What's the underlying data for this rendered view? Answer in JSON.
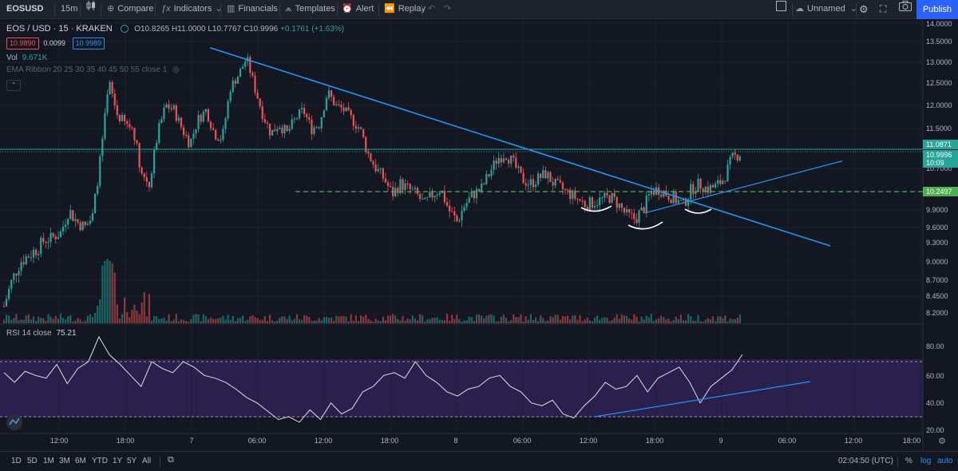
{
  "toolbar": {
    "symbol": "EOSUSD",
    "interval": "15m",
    "compare": "Compare",
    "indicators": "Indicators",
    "financials": "Financials",
    "templates": "Templates",
    "alert": "Alert",
    "replay": "Replay",
    "layout_name": "Unnamed",
    "publish": "Publish"
  },
  "legend": {
    "pair": "EOS / USD · 15 · KRAKEN",
    "open": "O10.8265",
    "high": "H11.0000",
    "low": "L10.7767",
    "close": "C10.9996",
    "change": "+0.1761 (+1.63%)",
    "bid": "10.9890",
    "spread": "0.0099",
    "ask": "10.9989",
    "vol_label": "Vol",
    "vol_value": "9.671K",
    "ema": "EMA Ribbon 20 25 30 35 40 45 50 55 close 1"
  },
  "rsi": {
    "label": "RSI 14 close",
    "value": "75.21"
  },
  "price_axis": [
    "14.0000",
    "13.5000",
    "13.0000",
    "12.5000",
    "12.0000",
    "11.5000",
    "10.7000",
    "9.9000",
    "9.6000",
    "9.3000",
    "9.0000",
    "8.7000",
    "8.4500",
    "8.2000"
  ],
  "price_tags": {
    "last_high": "11.0871",
    "last_price": "10.9996",
    "countdown": "10:09",
    "support": "10.2497"
  },
  "rsi_axis": [
    "80.00",
    "60.00",
    "40.00",
    "20.00"
  ],
  "time_axis": [
    "12:00",
    "18:00",
    "7",
    "06:00",
    "12:00",
    "18:00",
    "8",
    "06:00",
    "12:00",
    "18:00",
    "9",
    "06:00",
    "12:00",
    "18:00"
  ],
  "ranges": [
    "1D",
    "5D",
    "1M",
    "3M",
    "6M",
    "YTD",
    "1Y",
    "5Y",
    "All"
  ],
  "footer": {
    "clock": "02:04:50 (UTC)",
    "percent": "%",
    "log": "log",
    "auto": "auto"
  },
  "colors": {
    "up": "#26a69a",
    "down": "#ef5350",
    "trendline": "#2196f3",
    "support": "#4caf50",
    "accent": "#2962ff",
    "rsi_band": "#7e57c2"
  },
  "chart_data": {
    "type": "candlestick",
    "symbol": "EOS / USD",
    "timeframe": "15",
    "exchange": "KRAKEN",
    "ylim": [
      8.1,
      14.1
    ],
    "close_series": [
      8.3,
      8.7,
      9.0,
      9.1,
      9.2,
      9.35,
      9.4,
      9.5,
      9.9,
      9.7,
      9.6,
      9.8,
      11.0,
      12.5,
      11.8,
      11.6,
      11.5,
      10.6,
      10.4,
      11.4,
      12.0,
      11.9,
      11.5,
      11.2,
      11.7,
      11.9,
      11.4,
      11.3,
      12.4,
      12.7,
      13.1,
      12.4,
      11.8,
      11.4,
      11.6,
      11.4,
      11.7,
      11.9,
      11.5,
      11.6,
      12.3,
      12.0,
      11.9,
      11.7,
      11.5,
      11.0,
      10.7,
      10.5,
      10.2,
      10.4,
      10.3,
      10.2,
      10.0,
      10.2,
      10.3,
      9.9,
      9.7,
      10.0,
      10.2,
      10.3,
      10.6,
      10.9,
      11.0,
      10.8,
      10.5,
      10.4,
      10.5,
      10.6,
      10.4,
      10.3,
      10.2,
      10.1,
      10.0,
      10.05,
      10.1,
      10.15,
      10.0,
      9.8,
      9.75,
      9.9,
      10.25,
      10.3,
      10.2,
      10.1,
      10.0,
      10.3,
      10.4,
      10.3,
      10.35,
      10.5,
      10.9,
      11.0
    ],
    "trendline_down": {
      "from": 13.35,
      "to": 9.25
    },
    "trendline_up": {
      "from": 9.85,
      "to": 10.85
    },
    "support_level": 10.2497,
    "rsi": {
      "ylim": [
        20,
        100
      ],
      "bands": [
        30,
        70
      ],
      "values": [
        62,
        55,
        63,
        60,
        58,
        68,
        54,
        65,
        70,
        88,
        75,
        68,
        60,
        52,
        70,
        65,
        62,
        70,
        66,
        60,
        58,
        55,
        50,
        44,
        40,
        34,
        28,
        30,
        26,
        35,
        28,
        40,
        32,
        36,
        48,
        52,
        60,
        62,
        58,
        70,
        60,
        55,
        48,
        45,
        50,
        52,
        58,
        60,
        52,
        48,
        40,
        38,
        42,
        32,
        29,
        38,
        45,
        55,
        50,
        52,
        60,
        48,
        58,
        62,
        66,
        55,
        40,
        52,
        58,
        64,
        75.21
      ],
      "trend_from": 29,
      "trend_to": 56
    }
  }
}
